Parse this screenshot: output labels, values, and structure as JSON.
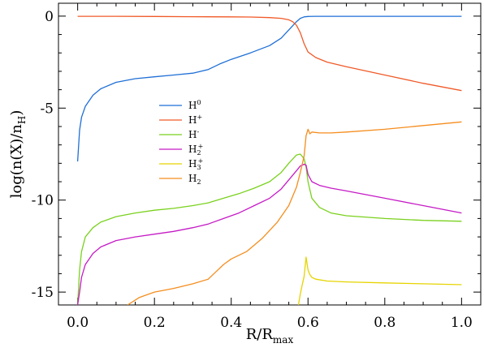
{
  "chart_data": {
    "type": "line",
    "xlabel": "R/R",
    "xlabel_sub": "max",
    "ylabel": "log(n(X)/n",
    "ylabel_sub": "H",
    "ylabel_close": ")",
    "xlim": [
      -0.05,
      1.05
    ],
    "ylim": [
      -15.7,
      0.7
    ],
    "xticks": [
      0.0,
      0.2,
      0.4,
      0.6,
      0.8,
      1.0
    ],
    "xtick_labels": [
      "0.0",
      "0.2",
      "0.4",
      "0.6",
      "0.8",
      "1.0"
    ],
    "yticks": [
      0,
      -5,
      -10,
      -15
    ],
    "ytick_labels": [
      "0",
      "-5",
      "-10",
      "-15"
    ],
    "grid": false,
    "legend_position": "center-left",
    "series": [
      {
        "name": "H",
        "sup": "0",
        "sub": "",
        "color": "#1f6fd6",
        "x": [
          0.0,
          0.005,
          0.01,
          0.02,
          0.04,
          0.06,
          0.1,
          0.15,
          0.2,
          0.25,
          0.3,
          0.34,
          0.37,
          0.4,
          0.45,
          0.5,
          0.53,
          0.55,
          0.57,
          0.58,
          0.59,
          0.6,
          0.62,
          0.7,
          0.8,
          0.9,
          1.0
        ],
        "y": [
          -7.9,
          -6.2,
          -5.5,
          -4.9,
          -4.3,
          -3.95,
          -3.6,
          -3.4,
          -3.3,
          -3.2,
          -3.1,
          -2.9,
          -2.6,
          -2.35,
          -2.0,
          -1.6,
          -1.2,
          -0.75,
          -0.3,
          -0.12,
          -0.04,
          -0.02,
          -0.01,
          -0.01,
          -0.01,
          -0.01,
          -0.01
        ]
      },
      {
        "name": "H",
        "sup": "+",
        "sub": "",
        "color": "#f05a28",
        "x": [
          0.0,
          0.1,
          0.2,
          0.3,
          0.4,
          0.45,
          0.5,
          0.53,
          0.55,
          0.56,
          0.57,
          0.58,
          0.59,
          0.6,
          0.62,
          0.65,
          0.7,
          0.8,
          0.9,
          1.0
        ],
        "y": [
          -0.01,
          -0.01,
          -0.02,
          -0.03,
          -0.04,
          -0.05,
          -0.08,
          -0.12,
          -0.2,
          -0.3,
          -0.5,
          -0.9,
          -1.5,
          -1.95,
          -2.25,
          -2.5,
          -2.75,
          -3.2,
          -3.65,
          -4.05
        ]
      },
      {
        "name": "H",
        "sup": "-",
        "sub": "",
        "color": "#7ad11e",
        "x": [
          0.0,
          0.005,
          0.01,
          0.02,
          0.04,
          0.06,
          0.1,
          0.15,
          0.2,
          0.25,
          0.3,
          0.34,
          0.38,
          0.42,
          0.46,
          0.5,
          0.53,
          0.55,
          0.57,
          0.58,
          0.59,
          0.595,
          0.6,
          0.61,
          0.63,
          0.66,
          0.7,
          0.8,
          0.9,
          1.0
        ],
        "y": [
          -15.7,
          -13.8,
          -12.8,
          -12.0,
          -11.5,
          -11.2,
          -10.9,
          -10.7,
          -10.55,
          -10.45,
          -10.3,
          -10.15,
          -9.9,
          -9.65,
          -9.35,
          -9.0,
          -8.5,
          -8.0,
          -7.55,
          -7.5,
          -7.75,
          -8.2,
          -9.0,
          -9.9,
          -10.4,
          -10.7,
          -10.85,
          -11.0,
          -11.1,
          -11.15
        ]
      },
      {
        "name": "H",
        "sup": "+",
        "sub": "2",
        "color": "#c51bc6",
        "x": [
          0.0,
          0.005,
          0.01,
          0.02,
          0.04,
          0.06,
          0.1,
          0.15,
          0.2,
          0.25,
          0.3,
          0.34,
          0.38,
          0.42,
          0.46,
          0.5,
          0.53,
          0.55,
          0.57,
          0.58,
          0.59,
          0.595,
          0.6,
          0.61,
          0.63,
          0.66,
          0.7,
          0.8,
          0.9,
          1.0
        ],
        "y": [
          -15.7,
          -15.0,
          -14.2,
          -13.5,
          -12.9,
          -12.55,
          -12.2,
          -12.0,
          -11.85,
          -11.7,
          -11.5,
          -11.3,
          -11.0,
          -10.7,
          -10.3,
          -9.9,
          -9.4,
          -8.9,
          -8.4,
          -8.15,
          -8.05,
          -8.1,
          -8.6,
          -9.0,
          -9.2,
          -9.35,
          -9.5,
          -9.9,
          -10.3,
          -10.7
        ]
      },
      {
        "name": "H",
        "sup": "+",
        "sub": "3",
        "color": "#e6d400",
        "x": [
          0.575,
          0.58,
          0.585,
          0.59,
          0.595,
          0.6,
          0.605,
          0.61,
          0.62,
          0.65,
          0.7,
          0.8,
          0.9,
          1.0
        ],
        "y": [
          -15.7,
          -15.1,
          -14.6,
          -14.15,
          -13.1,
          -13.8,
          -14.05,
          -14.2,
          -14.3,
          -14.4,
          -14.45,
          -14.5,
          -14.55,
          -14.6
        ]
      },
      {
        "name": "H",
        "sup": "",
        "sub": "2",
        "color": "#f58d1e",
        "x": [
          0.13,
          0.16,
          0.2,
          0.25,
          0.3,
          0.34,
          0.36,
          0.38,
          0.4,
          0.44,
          0.48,
          0.52,
          0.55,
          0.57,
          0.58,
          0.59,
          0.595,
          0.6,
          0.605,
          0.61,
          0.63,
          0.66,
          0.7,
          0.8,
          0.9,
          1.0
        ],
        "y": [
          -15.7,
          -15.3,
          -15.0,
          -14.8,
          -14.55,
          -14.3,
          -13.9,
          -13.5,
          -13.2,
          -12.8,
          -12.1,
          -11.2,
          -10.3,
          -9.3,
          -8.5,
          -7.6,
          -6.5,
          -6.15,
          -6.4,
          -6.3,
          -6.35,
          -6.35,
          -6.3,
          -6.15,
          -5.95,
          -5.75
        ]
      }
    ]
  }
}
